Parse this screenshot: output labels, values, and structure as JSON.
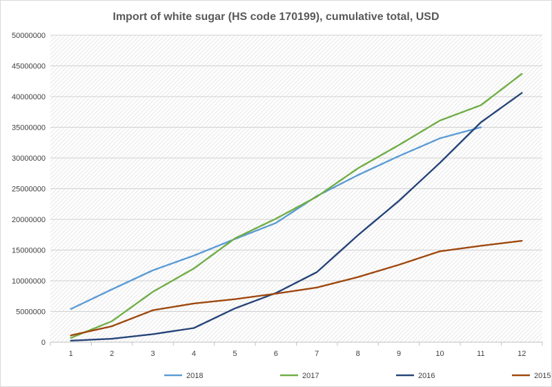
{
  "chart_data": {
    "type": "line",
    "title": "Import of white sugar (HS code 170199), cumulative total, USD",
    "xlabel": "",
    "ylabel": "",
    "x": [
      1,
      2,
      3,
      4,
      5,
      6,
      7,
      8,
      9,
      10,
      11,
      12
    ],
    "x_tick_labels": [
      "1",
      "2",
      "3",
      "4",
      "5",
      "6",
      "7",
      "8",
      "9",
      "10",
      "11",
      "12"
    ],
    "ylim": [
      0,
      50000000
    ],
    "y_ticks": [
      0,
      5000000,
      10000000,
      15000000,
      20000000,
      25000000,
      30000000,
      35000000,
      40000000,
      45000000,
      50000000
    ],
    "y_tick_labels": [
      "0",
      "5000000",
      "10000000",
      "15000000",
      "20000000",
      "25000000",
      "30000000",
      "35000000",
      "40000000",
      "45000000",
      "50000000"
    ],
    "grid": true,
    "legend_position": "bottom",
    "series": [
      {
        "name": "2018",
        "color": "#5b9bd5",
        "values": [
          5400000,
          8600000,
          11700000,
          14100000,
          16800000,
          19400000,
          23800000,
          27200000,
          30300000,
          33200000,
          35000000,
          null
        ]
      },
      {
        "name": "2017",
        "color": "#70ad47",
        "values": [
          700000,
          3400000,
          8200000,
          12000000,
          16900000,
          20100000,
          23700000,
          28300000,
          32100000,
          36100000,
          38600000,
          43700000
        ]
      },
      {
        "name": "2016",
        "color": "#264478",
        "values": [
          250000,
          550000,
          1300000,
          2300000,
          5500000,
          8000000,
          11400000,
          17400000,
          23000000,
          29200000,
          35800000,
          40600000
        ]
      },
      {
        "name": "2015",
        "color": "#9e480e",
        "values": [
          1100000,
          2600000,
          5200000,
          6300000,
          7000000,
          7900000,
          8900000,
          10600000,
          12600000,
          14800000,
          15700000,
          16500000
        ]
      }
    ]
  }
}
